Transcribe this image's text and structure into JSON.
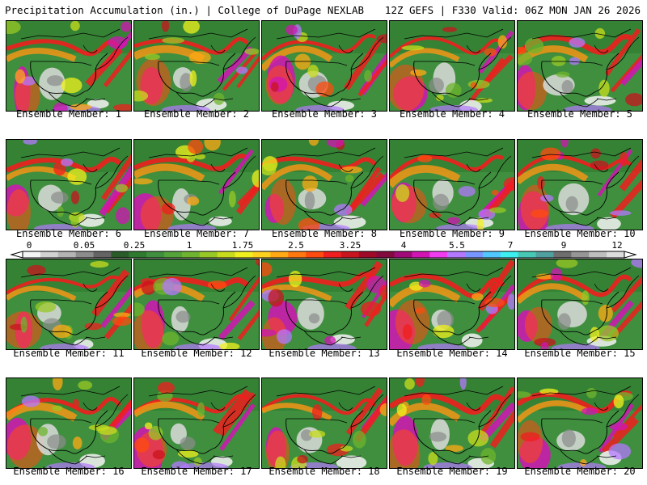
{
  "header": {
    "title_left": "Precipitation Accumulation (in.) | College of DuPage NEXLAB",
    "title_right": "12Z GEFS | F330 Valid: 06Z MON JAN 26 2026"
  },
  "members": [
    {
      "caption": "Ensemble Member: 1"
    },
    {
      "caption": "Ensemble Member: 2"
    },
    {
      "caption": "Ensemble Member: 3"
    },
    {
      "caption": "Ensemble Member: 4"
    },
    {
      "caption": "Ensemble Member: 5"
    },
    {
      "caption": "Ensemble Member: 6"
    },
    {
      "caption": "Ensemble Member: 7"
    },
    {
      "caption": "Ensemble Member: 8"
    },
    {
      "caption": "Ensemble Member: 9"
    },
    {
      "caption": "Ensemble Member: 10"
    },
    {
      "caption": "Ensemble Member: 11"
    },
    {
      "caption": "Ensemble Member: 12"
    },
    {
      "caption": "Ensemble Member: 13"
    },
    {
      "caption": "Ensemble Member: 14"
    },
    {
      "caption": "Ensemble Member: 15"
    },
    {
      "caption": "Ensemble Member: 16"
    },
    {
      "caption": "Ensemble Member: 17"
    },
    {
      "caption": "Ensemble Member: 18"
    },
    {
      "caption": "Ensemble Member: 19"
    },
    {
      "caption": "Ensemble Member: 20"
    }
  ],
  "legend": {
    "tick_labels": [
      "0",
      "0.05",
      "0.25",
      "1",
      "1.75",
      "2.5",
      "3.25",
      "4",
      "5.5",
      "7",
      "9",
      "12"
    ],
    "colors": [
      "#f4f4f4",
      "#d2d2d2",
      "#b4b4b4",
      "#8c8c8c",
      "#646464",
      "#2a5c2a",
      "#2f7a2f",
      "#3f8f3f",
      "#54a43a",
      "#6fb42e",
      "#98c825",
      "#c8dc1e",
      "#f0f01e",
      "#ffd21e",
      "#ffaa14",
      "#ff780f",
      "#ff4b0f",
      "#f01e1e",
      "#c8141e",
      "#a00a28",
      "#820a3c",
      "#a00a78",
      "#d214b4",
      "#f03cf0",
      "#b478ff",
      "#7896ff",
      "#50c8ff",
      "#3cf0f0",
      "#46c8b4",
      "#50a0a0",
      "#6e6e6e",
      "#969696",
      "#bebebe",
      "#dcdcdc"
    ]
  }
}
